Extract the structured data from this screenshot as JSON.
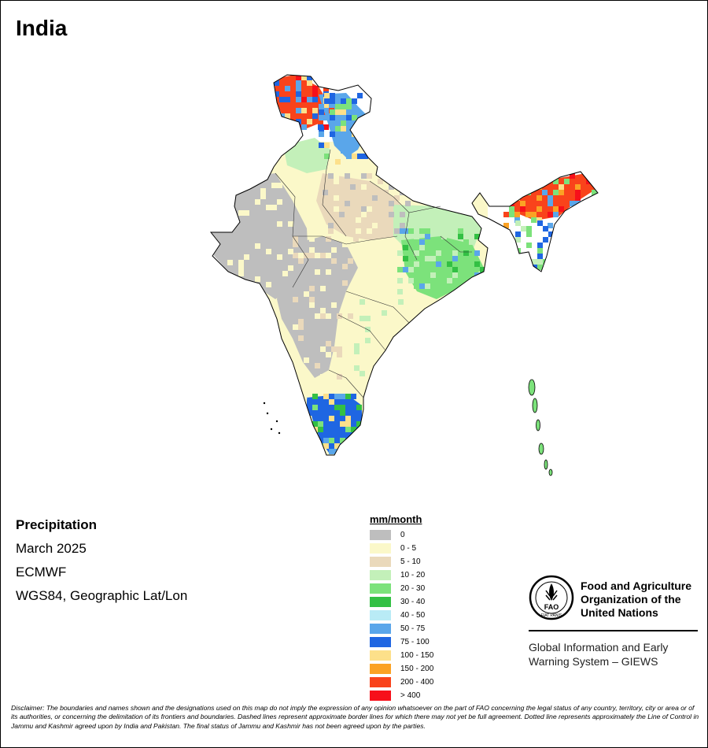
{
  "map": {
    "title": "India",
    "variable": "Precipitation",
    "period": "March 2025",
    "source": "ECMWF",
    "projection": "WGS84, Geographic Lat/Lon"
  },
  "legend": {
    "title": "mm/month",
    "classes": [
      {
        "label": "0",
        "color": "#bebebe"
      },
      {
        "label": "0 - 5",
        "color": "#fbf8c9"
      },
      {
        "label": "5 - 10",
        "color": "#ead9bb"
      },
      {
        "label": "10 - 20",
        "color": "#c3f0b9"
      },
      {
        "label": "20 - 30",
        "color": "#7ce27b"
      },
      {
        "label": "30 - 40",
        "color": "#33c044"
      },
      {
        "label": "40 - 50",
        "color": "#b9ebf6"
      },
      {
        "label": "50 - 75",
        "color": "#5aa6ea"
      },
      {
        "label": "75 - 100",
        "color": "#1f66e2"
      },
      {
        "label": "100 - 150",
        "color": "#fde08a"
      },
      {
        "label": "150 - 200",
        "color": "#fba224"
      },
      {
        "label": "200 - 400",
        "color": "#f9431b"
      },
      {
        "label": "> 400",
        "color": "#f7101a"
      }
    ]
  },
  "organization": {
    "emblem_letters": "FAO",
    "emblem_motto": "FIAT PANIS",
    "name": "Food and Agriculture Organization of the United Nations",
    "system": "Global Information and Early Warning System – GIEWS"
  },
  "disclaimer": "Disclaimer: The boundaries and names shown and the designations used on this map do not imply the expression of any opinion whatsoever on the part of FAO concerning the legal status of any country, territory, city or area or of its authorities, or concerning the delimitation of its frontiers and boundaries. Dashed lines represent approximate border lines for which there may not yet be full agreement. Dotted line represents approximately the Line of Control in Jammu and Kashmir agreed upon by India and Pakistan. The final status of Jammu and Kashmir has not been agreed upon by the parties.",
  "regions": [
    {
      "zone": "northwest-dry",
      "class": "0"
    },
    {
      "zone": "deccan-interior",
      "class": "0"
    },
    {
      "zone": "gangetic-plain",
      "class": "0 - 5"
    },
    {
      "zone": "central-india",
      "class": "5 - 10"
    },
    {
      "zone": "east-india",
      "class": "10 - 20"
    },
    {
      "zone": "odisha-jharkhand",
      "class": "20 - 30"
    },
    {
      "zone": "punjab-himachal",
      "class": "10 - 20"
    },
    {
      "zone": "kashmir-ladakh",
      "class": "200 - 400"
    },
    {
      "zone": "uttarakhand",
      "class": "50 - 75"
    },
    {
      "zone": "northeast",
      "class": "200 - 400"
    },
    {
      "zone": "kerala-tamilnadu",
      "class": "75 - 100"
    },
    {
      "zone": "andaman-islands",
      "class": "20 - 30"
    }
  ]
}
